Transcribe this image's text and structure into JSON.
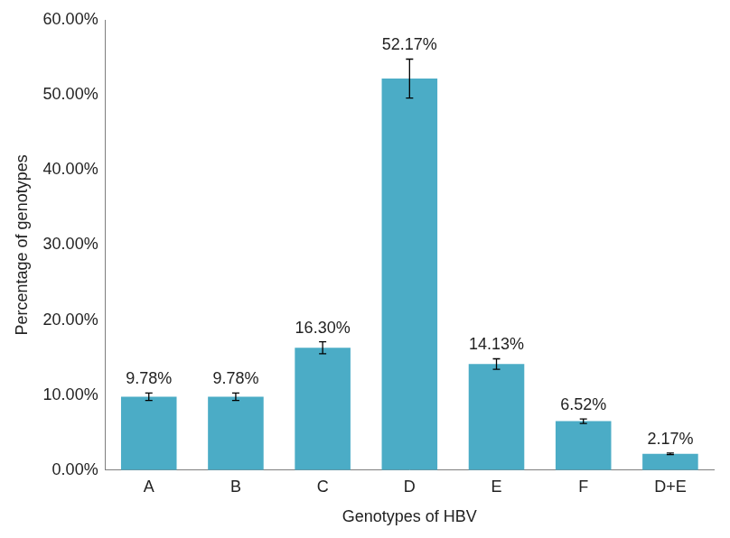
{
  "chart_data": {
    "type": "bar",
    "x_label": "Genotypes of HBV",
    "y_label": "Percentage of genotypes",
    "categories": [
      "A",
      "B",
      "C",
      "D",
      "E",
      "F",
      "D+E"
    ],
    "values": [
      9.78,
      9.78,
      16.3,
      52.17,
      14.13,
      6.52,
      2.17
    ],
    "value_labels": [
      "9.78%",
      "9.78%",
      "16.30%",
      "52.17%",
      "14.13%",
      "6.52%",
      "2.17%"
    ],
    "errors": [
      0.5,
      0.5,
      0.8,
      2.6,
      0.7,
      0.3,
      0.1
    ],
    "color": "#4bacc6",
    "ylim": [
      0,
      60
    ],
    "yticks": [
      {
        "value": 0,
        "label": "0.00%"
      },
      {
        "value": 10,
        "label": "10.00%"
      },
      {
        "value": 20,
        "label": "20.00%"
      },
      {
        "value": 30,
        "label": "30.00%"
      },
      {
        "value": 40,
        "label": "40.00%"
      },
      {
        "value": 50,
        "label": "50.00%"
      },
      {
        "value": 60,
        "label": "60.00%"
      }
    ],
    "grid": false,
    "data_labels": true
  }
}
